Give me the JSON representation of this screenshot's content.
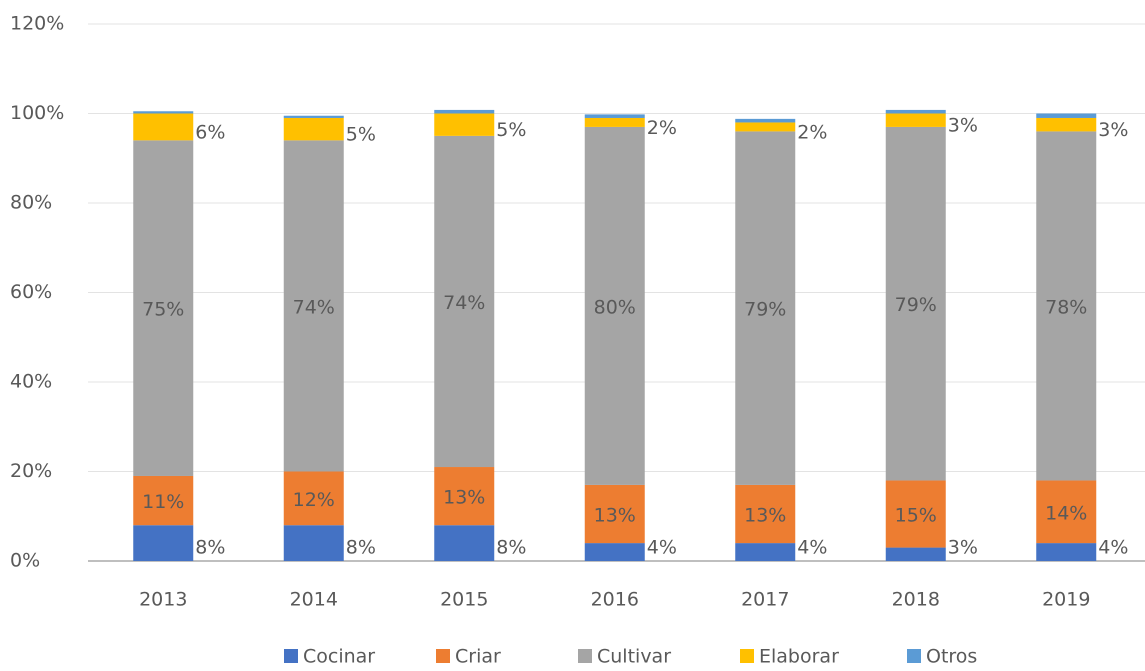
{
  "chart_data": {
    "type": "stacked_bar",
    "categories": [
      "2013",
      "2014",
      "2015",
      "2016",
      "2017",
      "2018",
      "2019"
    ],
    "series": [
      {
        "name": "Cocinar",
        "color": "#4472c4",
        "values": [
          8,
          8,
          8,
          4,
          4,
          3,
          4
        ],
        "value_labels": [
          "8%",
          "8%",
          "8%",
          "4%",
          "4%",
          "3%",
          "4%"
        ]
      },
      {
        "name": "Criar",
        "color": "#ed7d31",
        "values": [
          11,
          12,
          13,
          13,
          13,
          15,
          14
        ],
        "value_labels": [
          "11%",
          "12%",
          "13%",
          "13%",
          "13%",
          "15%",
          "14%"
        ]
      },
      {
        "name": "Cultivar",
        "color": "#a5a5a5",
        "values": [
          75,
          74,
          74,
          80,
          79,
          79,
          78
        ],
        "value_labels": [
          "75%",
          "74%",
          "74%",
          "80%",
          "79%",
          "79%",
          "78%"
        ]
      },
      {
        "name": "Elaborar",
        "color": "#ffc000",
        "values": [
          6,
          5,
          5,
          2,
          2,
          3,
          3
        ],
        "value_labels": [
          "6%",
          "5%",
          "5%",
          "2%",
          "2%",
          "3%",
          "3%"
        ]
      },
      {
        "name": "Otros",
        "color": "#5b9bd5",
        "values": [
          0.5,
          0.5,
          0.8,
          0.8,
          0.8,
          0.8,
          1
        ]
      }
    ],
    "ylim": [
      0,
      120
    ],
    "yticks": [
      {
        "value": 0,
        "label": "0%"
      },
      {
        "value": 20,
        "label": "20%"
      },
      {
        "value": 40,
        "label": "40%"
      },
      {
        "value": 60,
        "label": "60%"
      },
      {
        "value": 80,
        "label": "80%"
      },
      {
        "value": 100,
        "label": "100%"
      },
      {
        "value": 120,
        "label": "120%"
      }
    ],
    "grid": true,
    "legend": "bottom"
  }
}
